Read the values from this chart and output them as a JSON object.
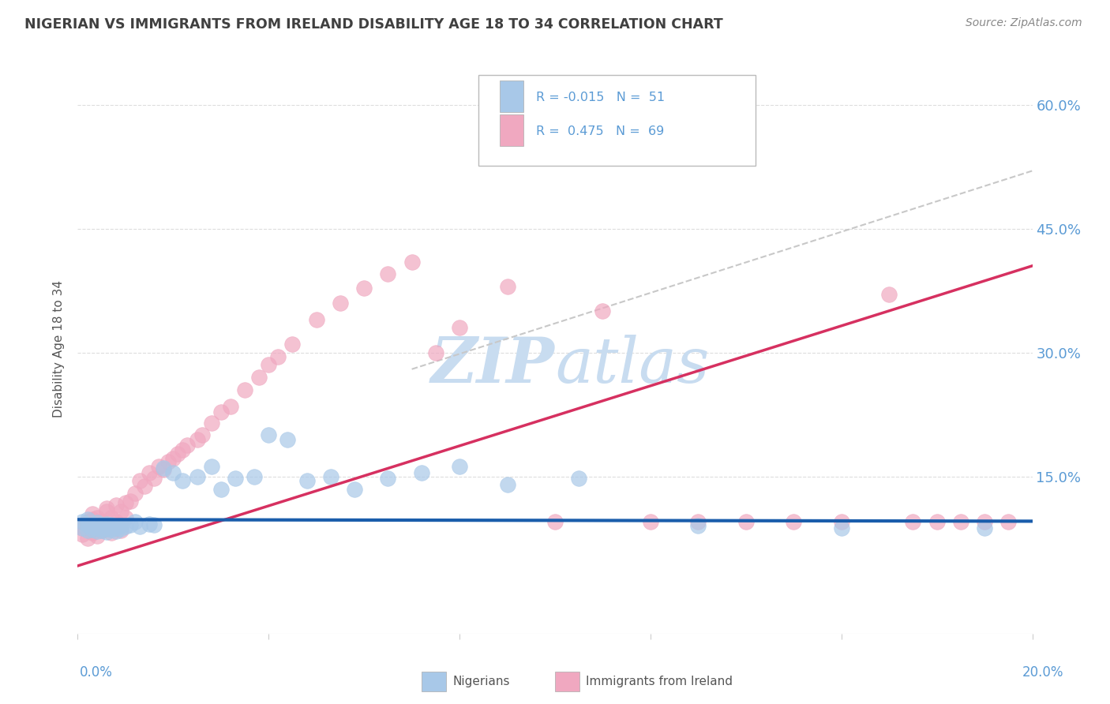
{
  "title": "NIGERIAN VS IMMIGRANTS FROM IRELAND DISABILITY AGE 18 TO 34 CORRELATION CHART",
  "source": "Source: ZipAtlas.com",
  "ylabel": "Disability Age 18 to 34",
  "y_ticks": [
    0.0,
    0.15,
    0.3,
    0.45,
    0.6
  ],
  "y_tick_labels": [
    "",
    "15.0%",
    "30.0%",
    "45.0%",
    "60.0%"
  ],
  "xlim": [
    0.0,
    0.2
  ],
  "ylim": [
    -0.04,
    0.65
  ],
  "legend_r1": "R = -0.015",
  "legend_n1": "N =  51",
  "legend_r2": "R =  0.475",
  "legend_n2": "N =  69",
  "blue_color": "#A8C8E8",
  "pink_color": "#F0A8C0",
  "blue_line_color": "#1A5DAB",
  "pink_line_color": "#D63060",
  "dash_line_color": "#C8C8C8",
  "title_color": "#404040",
  "source_color": "#888888",
  "axis_label_color": "#5B9BD5",
  "watermark_color": "#C8DCF0",
  "background_color": "#FFFFFF",
  "nigerians_x": [
    0.001,
    0.001,
    0.002,
    0.002,
    0.002,
    0.003,
    0.003,
    0.003,
    0.004,
    0.004,
    0.004,
    0.005,
    0.005,
    0.005,
    0.006,
    0.006,
    0.006,
    0.007,
    0.007,
    0.007,
    0.008,
    0.008,
    0.009,
    0.009,
    0.01,
    0.011,
    0.012,
    0.013,
    0.015,
    0.016,
    0.018,
    0.02,
    0.022,
    0.025,
    0.028,
    0.03,
    0.033,
    0.037,
    0.04,
    0.044,
    0.048,
    0.053,
    0.058,
    0.065,
    0.072,
    0.08,
    0.09,
    0.105,
    0.13,
    0.16,
    0.19
  ],
  "nigerians_y": [
    0.095,
    0.088,
    0.092,
    0.085,
    0.098,
    0.09,
    0.086,
    0.092,
    0.088,
    0.084,
    0.094,
    0.089,
    0.085,
    0.092,
    0.087,
    0.093,
    0.083,
    0.09,
    0.086,
    0.092,
    0.088,
    0.084,
    0.091,
    0.087,
    0.09,
    0.092,
    0.095,
    0.09,
    0.093,
    0.092,
    0.16,
    0.155,
    0.145,
    0.15,
    0.162,
    0.135,
    0.148,
    0.15,
    0.2,
    0.195,
    0.145,
    0.15,
    0.135,
    0.148,
    0.155,
    0.162,
    0.14,
    0.148,
    0.091,
    0.088,
    0.088
  ],
  "ireland_x": [
    0.001,
    0.001,
    0.002,
    0.002,
    0.002,
    0.003,
    0.003,
    0.003,
    0.004,
    0.004,
    0.004,
    0.005,
    0.005,
    0.006,
    0.006,
    0.006,
    0.007,
    0.007,
    0.007,
    0.008,
    0.008,
    0.009,
    0.009,
    0.01,
    0.01,
    0.011,
    0.012,
    0.013,
    0.014,
    0.015,
    0.016,
    0.017,
    0.018,
    0.019,
    0.02,
    0.021,
    0.022,
    0.023,
    0.025,
    0.026,
    0.028,
    0.03,
    0.032,
    0.035,
    0.038,
    0.04,
    0.042,
    0.045,
    0.05,
    0.055,
    0.06,
    0.065,
    0.07,
    0.075,
    0.08,
    0.09,
    0.1,
    0.11,
    0.12,
    0.13,
    0.14,
    0.15,
    0.16,
    0.17,
    0.175,
    0.18,
    0.185,
    0.19,
    0.195
  ],
  "ireland_y": [
    0.088,
    0.08,
    0.095,
    0.075,
    0.092,
    0.098,
    0.082,
    0.105,
    0.09,
    0.078,
    0.1,
    0.095,
    0.085,
    0.108,
    0.088,
    0.112,
    0.082,
    0.1,
    0.09,
    0.115,
    0.095,
    0.108,
    0.085,
    0.118,
    0.1,
    0.12,
    0.13,
    0.145,
    0.138,
    0.155,
    0.148,
    0.162,
    0.158,
    0.168,
    0.172,
    0.178,
    0.182,
    0.188,
    0.195,
    0.2,
    0.215,
    0.228,
    0.235,
    0.255,
    0.27,
    0.285,
    0.295,
    0.31,
    0.34,
    0.36,
    0.378,
    0.395,
    0.41,
    0.3,
    0.33,
    0.38,
    0.095,
    0.35,
    0.095,
    0.095,
    0.095,
    0.095,
    0.095,
    0.37,
    0.095,
    0.095,
    0.095,
    0.095,
    0.095
  ],
  "blue_line_y0": 0.098,
  "blue_line_y1": 0.096,
  "pink_line_x0": 0.0,
  "pink_line_y0": 0.042,
  "pink_line_x1": 0.2,
  "pink_line_y1": 0.405,
  "dash_line_x0": 0.07,
  "dash_line_y0": 0.28,
  "dash_line_x1": 0.2,
  "dash_line_y1": 0.52
}
